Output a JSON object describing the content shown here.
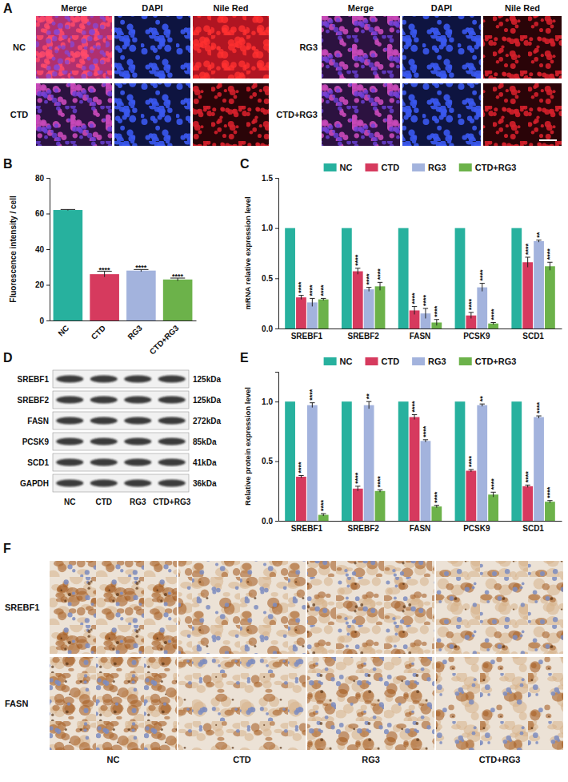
{
  "chart_data": [
    {
      "type": "bar",
      "panel": "B",
      "ylabel": "Fluorescence intensity / cell",
      "categories": [
        "NC",
        "CTD",
        "RG3",
        "CTD+RG3"
      ],
      "values": [
        62,
        26,
        28,
        23
      ],
      "errors": [
        0.3,
        1.6,
        0.6,
        0.8
      ],
      "stars": [
        null,
        "****",
        "****",
        "****"
      ],
      "colors": [
        "#27b19e",
        "#d63a5e",
        "#a3b3dd",
        "#6cb24a"
      ],
      "ylim": [
        0,
        80
      ],
      "yticks": [
        0,
        20,
        40,
        60,
        80
      ]
    },
    {
      "type": "bar",
      "panel": "C",
      "ylabel": "mRNA relative expression level",
      "legend": "top",
      "categories": [
        "SREBF1",
        "SREBF2",
        "FASN",
        "PCSK9",
        "SCD1"
      ],
      "series": [
        {
          "name": "NC",
          "color": "#27b19e",
          "values": [
            1,
            1,
            1,
            1,
            1
          ]
        },
        {
          "name": "CTD",
          "color": "#d63a5e",
          "values": [
            0.31,
            0.57,
            0.18,
            0.13,
            0.66
          ],
          "errors": [
            0.02,
            0.03,
            0.04,
            0.03,
            0.05
          ],
          "stars": [
            "****",
            "****",
            "****",
            "****",
            "****"
          ]
        },
        {
          "name": "RG3",
          "color": "#a3b3dd",
          "values": [
            0.26,
            0.39,
            0.15,
            0.41,
            0.87
          ],
          "errors": [
            0.04,
            0.02,
            0.05,
            0.04,
            0.01
          ],
          "stars": [
            "****",
            "****",
            "****",
            "****",
            "**"
          ]
        },
        {
          "name": "CTD+RG3",
          "color": "#6cb24a",
          "values": [
            0.29,
            0.42,
            0.06,
            0.05,
            0.62
          ],
          "errors": [
            0.01,
            0.04,
            0.03,
            0.01,
            0.04
          ],
          "stars": [
            "****",
            "****",
            "****",
            "****",
            "****"
          ]
        }
      ],
      "ylim": [
        0,
        1.5
      ],
      "yticks": [
        {
          "value": 0,
          "label": "0.0"
        },
        0.5,
        {
          "value": 1,
          "label": "1.0"
        },
        1.5
      ]
    },
    {
      "type": "bar",
      "panel": "E",
      "ylabel": "Relative protein expression level",
      "legend": "top",
      "categories": [
        "SREBF1",
        "SREBF2",
        "FASN",
        "PCSK9",
        "SCD1"
      ],
      "series": [
        {
          "name": "NC",
          "color": "#27b19e",
          "values": [
            1,
            1,
            1,
            1,
            1
          ]
        },
        {
          "name": "CTD",
          "color": "#d63a5e",
          "values": [
            0.37,
            0.27,
            0.87,
            0.42,
            0.29
          ],
          "errors": [
            0.01,
            0.02,
            0.02,
            0.01,
            0.01
          ],
          "stars": [
            "****",
            "****",
            "****",
            "****",
            "****"
          ]
        },
        {
          "name": "RG3",
          "color": "#a3b3dd",
          "values": [
            0.97,
            0.97,
            0.67,
            0.97,
            0.87
          ],
          "errors": [
            0.02,
            0.03,
            0.01,
            0.01,
            0.01
          ],
          "stars": [
            "****",
            "**",
            "****",
            "**",
            "****"
          ]
        },
        {
          "name": "CTD+RG3",
          "color": "#6cb24a",
          "values": [
            0.05,
            0.25,
            0.12,
            0.22,
            0.16
          ],
          "errors": [
            0.01,
            0.01,
            0.01,
            0.02,
            0.01
          ],
          "stars": [
            "****",
            "****",
            "****",
            "****",
            "****"
          ]
        }
      ],
      "ylim": [
        0,
        1.25
      ],
      "yticks": [
        {
          "value": 0,
          "label": "0.0"
        },
        0.5,
        {
          "value": 1,
          "label": "1.0"
        }
      ]
    }
  ],
  "image_panels": {
    "A": {
      "panel": "A",
      "groups": [
        {
          "columns": [
            "Merge",
            "DAPI",
            "Nile Red"
          ],
          "rows": [
            "NC",
            "CTD"
          ]
        },
        {
          "columns": [
            "Merge",
            "DAPI",
            "Nile Red"
          ],
          "rows": [
            "RG3",
            "CTD+RG3"
          ]
        }
      ]
    },
    "D": {
      "panel": "D",
      "proteins": [
        "SREBF1",
        "SREBF2",
        "FASN",
        "PCSK9",
        "SCD1",
        "GAPDH"
      ],
      "sizes": [
        "125kDa",
        "125kDa",
        "272kDa",
        "85kDa",
        "41kDa",
        "36kDa"
      ],
      "lanes": [
        "NC",
        "CTD",
        "RG3",
        "CTD+RG3"
      ]
    },
    "F": {
      "panel": "F",
      "rows": [
        "SREBF1",
        "FASN"
      ],
      "columns": [
        "NC",
        "CTD",
        "RG3",
        "CTD+RG3"
      ]
    }
  }
}
